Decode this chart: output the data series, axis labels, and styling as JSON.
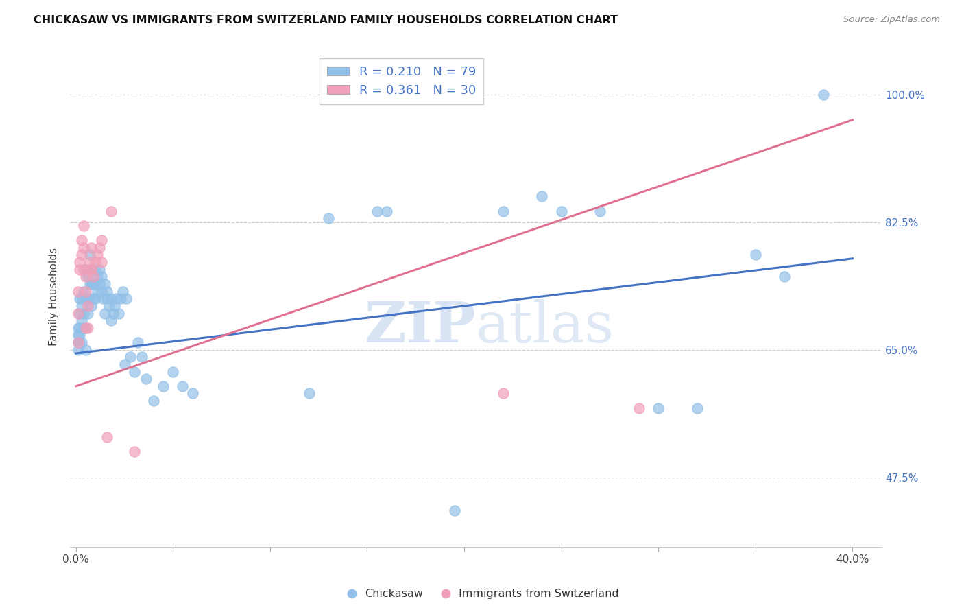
{
  "title": "CHICKASAW VS IMMIGRANTS FROM SWITZERLAND FAMILY HOUSEHOLDS CORRELATION CHART",
  "source": "Source: ZipAtlas.com",
  "ylabel": "Family Households",
  "yticks": [
    "47.5%",
    "65.0%",
    "82.5%",
    "100.0%"
  ],
  "ytick_vals": [
    0.475,
    0.65,
    0.825,
    1.0
  ],
  "xlim": [
    -0.003,
    0.415
  ],
  "ylim": [
    0.38,
    1.065
  ],
  "legend_r1": "R = 0.210",
  "legend_n1": "N = 79",
  "legend_r2": "R = 0.361",
  "legend_n2": "N = 30",
  "color_blue": "#92C0E8",
  "color_pink": "#F0A0B8",
  "color_blue_dark": "#4472C4",
  "color_pink_dark": "#E07090",
  "watermark": "ZIPatlas",
  "blue_line_x": [
    0.0,
    0.4
  ],
  "blue_line_y": [
    0.645,
    0.775
  ],
  "pink_line_x": [
    0.0,
    0.4
  ],
  "pink_line_y": [
    0.6,
    0.965
  ],
  "chickasaw_x": [
    0.001,
    0.001,
    0.001,
    0.001,
    0.002,
    0.002,
    0.002,
    0.002,
    0.002,
    0.003,
    0.003,
    0.003,
    0.003,
    0.004,
    0.004,
    0.004,
    0.005,
    0.005,
    0.005,
    0.005,
    0.006,
    0.006,
    0.007,
    0.007,
    0.007,
    0.008,
    0.008,
    0.008,
    0.009,
    0.009,
    0.01,
    0.01,
    0.01,
    0.011,
    0.011,
    0.012,
    0.012,
    0.013,
    0.013,
    0.014,
    0.015,
    0.015,
    0.016,
    0.016,
    0.017,
    0.018,
    0.018,
    0.019,
    0.02,
    0.021,
    0.022,
    0.023,
    0.024,
    0.025,
    0.026,
    0.028,
    0.03,
    0.032,
    0.034,
    0.036,
    0.04,
    0.045,
    0.05,
    0.055,
    0.06,
    0.12,
    0.13,
    0.155,
    0.16,
    0.195,
    0.22,
    0.24,
    0.25,
    0.27,
    0.3,
    0.32,
    0.35,
    0.365,
    0.385
  ],
  "chickasaw_y": [
    0.66,
    0.67,
    0.65,
    0.68,
    0.72,
    0.66,
    0.67,
    0.68,
    0.7,
    0.71,
    0.66,
    0.69,
    0.72,
    0.73,
    0.7,
    0.68,
    0.76,
    0.72,
    0.68,
    0.65,
    0.75,
    0.7,
    0.78,
    0.74,
    0.72,
    0.76,
    0.74,
    0.71,
    0.74,
    0.72,
    0.76,
    0.74,
    0.72,
    0.75,
    0.73,
    0.76,
    0.74,
    0.75,
    0.73,
    0.72,
    0.74,
    0.7,
    0.73,
    0.72,
    0.71,
    0.69,
    0.72,
    0.7,
    0.71,
    0.72,
    0.7,
    0.72,
    0.73,
    0.63,
    0.72,
    0.64,
    0.62,
    0.66,
    0.64,
    0.61,
    0.58,
    0.6,
    0.62,
    0.6,
    0.59,
    0.59,
    0.83,
    0.84,
    0.84,
    0.43,
    0.84,
    0.86,
    0.84,
    0.84,
    0.57,
    0.57,
    0.78,
    0.75,
    1.0
  ],
  "swiss_x": [
    0.001,
    0.001,
    0.001,
    0.002,
    0.002,
    0.003,
    0.003,
    0.004,
    0.004,
    0.004,
    0.005,
    0.005,
    0.005,
    0.006,
    0.006,
    0.007,
    0.007,
    0.008,
    0.008,
    0.009,
    0.01,
    0.011,
    0.012,
    0.013,
    0.013,
    0.016,
    0.018,
    0.03,
    0.22,
    0.29
  ],
  "swiss_y": [
    0.7,
    0.73,
    0.66,
    0.76,
    0.77,
    0.78,
    0.8,
    0.76,
    0.79,
    0.82,
    0.75,
    0.68,
    0.73,
    0.68,
    0.71,
    0.77,
    0.76,
    0.76,
    0.79,
    0.75,
    0.77,
    0.78,
    0.79,
    0.77,
    0.8,
    0.53,
    0.84,
    0.51,
    0.59,
    0.57
  ]
}
